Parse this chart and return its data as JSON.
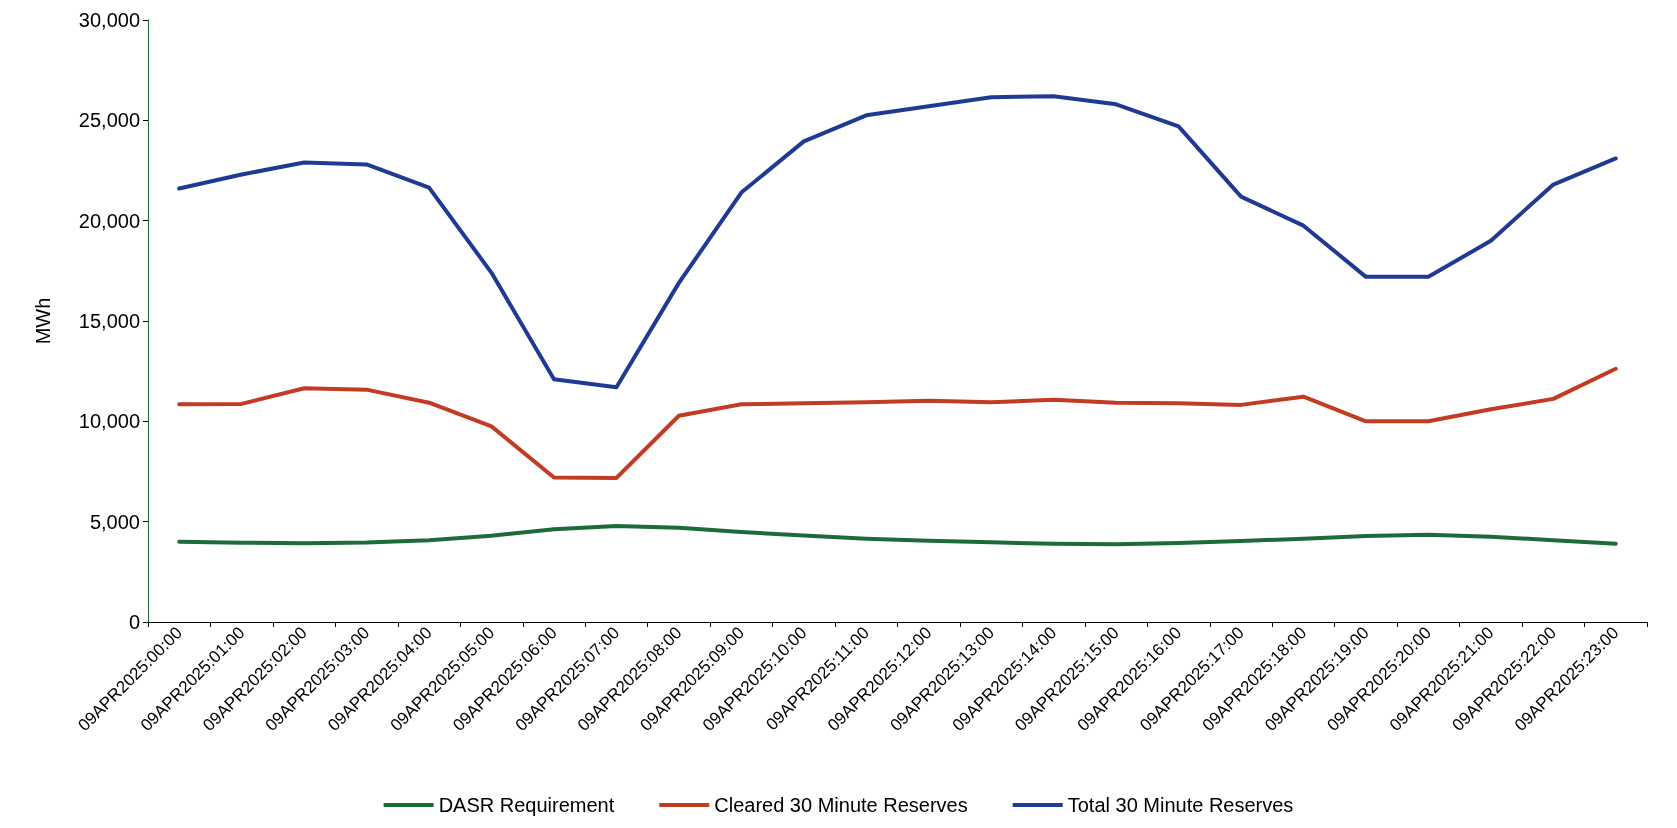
{
  "chart_data": {
    "type": "line",
    "ylabel": "MWh",
    "categories": [
      "09APR2025:00:00",
      "09APR2025:01:00",
      "09APR2025:02:00",
      "09APR2025:03:00",
      "09APR2025:04:00",
      "09APR2025:05:00",
      "09APR2025:06:00",
      "09APR2025:07:00",
      "09APR2025:08:00",
      "09APR2025:09:00",
      "09APR2025:10:00",
      "09APR2025:11:00",
      "09APR2025:12:00",
      "09APR2025:13:00",
      "09APR2025:14:00",
      "09APR2025:15:00",
      "09APR2025:16:00",
      "09APR2025:17:00",
      "09APR2025:18:00",
      "09APR2025:19:00",
      "09APR2025:20:00",
      "09APR2025:21:00",
      "09APR2025:22:00",
      "09APR2025:23:00"
    ],
    "series": [
      {
        "name": "DASR Requirement",
        "color": "#1e6b3a",
        "values": [
          4000,
          3950,
          3930,
          3960,
          4070,
          4300,
          4620,
          4780,
          4700,
          4480,
          4310,
          4150,
          4050,
          3970,
          3900,
          3880,
          3940,
          4040,
          4150,
          4290,
          4350,
          4250,
          4080,
          3900
        ]
      },
      {
        "name": "Cleared 30 Minute Reserves",
        "color": "#c23b22",
        "values": [
          10850,
          10870,
          11650,
          11580,
          10930,
          9750,
          7200,
          7180,
          10280,
          10850,
          10900,
          10950,
          11030,
          10950,
          11080,
          10930,
          10900,
          10820,
          11230,
          10000,
          10000,
          10600,
          11120,
          12620
        ]
      },
      {
        "name": "Total 30 Minute Reserves",
        "color": "#1f3a93",
        "values": [
          21600,
          22300,
          22900,
          22800,
          21650,
          17400,
          12100,
          11700,
          16900,
          21400,
          23950,
          25250,
          25700,
          26150,
          26200,
          25800,
          24700,
          21200,
          19750,
          17200,
          17200,
          19000,
          21800,
          23100
        ]
      }
    ],
    "ylim": [
      0,
      30000
    ],
    "yticks": [
      0,
      {
        "value": 5000,
        "label": "5,000"
      },
      {
        "value": 10000,
        "label": "10,000"
      },
      {
        "value": 15000,
        "label": "15,000"
      },
      {
        "value": 20000,
        "label": "20,000"
      },
      {
        "value": 25000,
        "label": "25,000"
      },
      {
        "value": 30000,
        "label": "30,000"
      }
    ],
    "grid": false,
    "legend": "bottom",
    "marker": "none",
    "line_style": "solid"
  }
}
